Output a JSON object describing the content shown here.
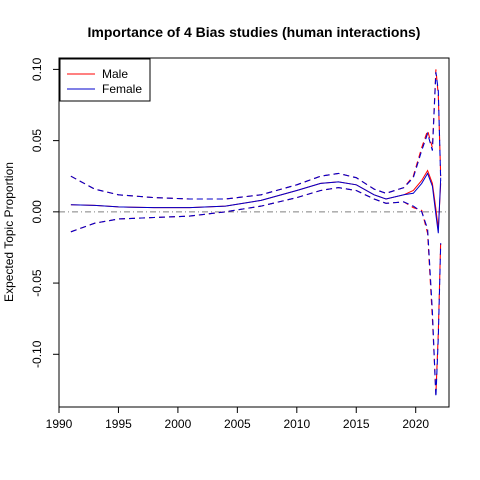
{
  "chart_data": {
    "type": "line",
    "title": "Importance of 4 Bias studies (human interactions)",
    "xlabel": "",
    "ylabel": "Expected Topic Proportion",
    "xlim": [
      1990,
      2022.8
    ],
    "ylim": [
      -0.137,
      0.108
    ],
    "x_ticks": [
      1990,
      1995,
      2000,
      2005,
      2010,
      2015,
      2020
    ],
    "y_ticks": [
      -0.1,
      -0.05,
      0.0,
      0.05,
      0.1
    ],
    "y_tick_labels": [
      "-0.10",
      "-0.05",
      "0.00",
      "0.05",
      "0.10"
    ],
    "reference_line": 0,
    "grid": false,
    "legend_position": "top-left",
    "colors": {
      "male": "#ff0000",
      "female": "#0000cc",
      "reference": "#808080"
    },
    "series": [
      {
        "name": "Male",
        "color": "#ff0000",
        "x": [
          1991,
          1993,
          1995,
          1998,
          2001,
          2004,
          2007,
          2010,
          2012,
          2013.5,
          2015,
          2016.5,
          2017.5,
          2019,
          2019.8,
          2020.5,
          2021,
          2021.4,
          2021.7,
          2021.9,
          2022.1
        ],
        "mean": [
          0.005,
          0.0045,
          0.0035,
          0.003,
          0.003,
          0.004,
          0.008,
          0.015,
          0.02,
          0.021,
          0.019,
          0.012,
          0.009,
          0.012,
          0.015,
          0.022,
          0.029,
          0.02,
          0.002,
          -0.012,
          0.02
        ],
        "lower": [
          -0.014,
          -0.008,
          -0.005,
          -0.004,
          -0.003,
          0.0,
          0.004,
          0.01,
          0.015,
          0.017,
          0.015,
          0.009,
          0.006,
          0.007,
          0.003,
          0.001,
          -0.015,
          -0.075,
          -0.128,
          -0.085,
          -0.02
        ],
        "upper": [
          0.025,
          0.016,
          0.012,
          0.01,
          0.009,
          0.009,
          0.012,
          0.019,
          0.025,
          0.027,
          0.024,
          0.016,
          0.013,
          0.017,
          0.025,
          0.045,
          0.057,
          0.045,
          0.1,
          0.082,
          0.025
        ]
      },
      {
        "name": "Female",
        "color": "#0000cc",
        "x": [
          1991,
          1993,
          1995,
          1998,
          2001,
          2004,
          2007,
          2010,
          2012,
          2013.5,
          2015,
          2016.5,
          2017.5,
          2019,
          2019.8,
          2020.5,
          2021,
          2021.4,
          2021.7,
          2021.9,
          2022.1
        ],
        "mean": [
          0.005,
          0.0045,
          0.0035,
          0.003,
          0.003,
          0.004,
          0.008,
          0.015,
          0.02,
          0.021,
          0.019,
          0.012,
          0.009,
          0.012,
          0.013,
          0.02,
          0.027,
          0.018,
          -0.002,
          -0.015,
          0.024
        ],
        "lower": [
          -0.014,
          -0.008,
          -0.005,
          -0.004,
          -0.003,
          0.0,
          0.004,
          0.01,
          0.015,
          0.017,
          0.015,
          0.009,
          0.006,
          0.007,
          0.004,
          0.0,
          -0.012,
          -0.07,
          -0.13,
          -0.088,
          -0.022
        ],
        "upper": [
          0.025,
          0.016,
          0.012,
          0.01,
          0.009,
          0.009,
          0.012,
          0.019,
          0.025,
          0.027,
          0.024,
          0.016,
          0.013,
          0.017,
          0.024,
          0.043,
          0.055,
          0.043,
          0.098,
          0.085,
          0.022
        ]
      }
    ]
  }
}
